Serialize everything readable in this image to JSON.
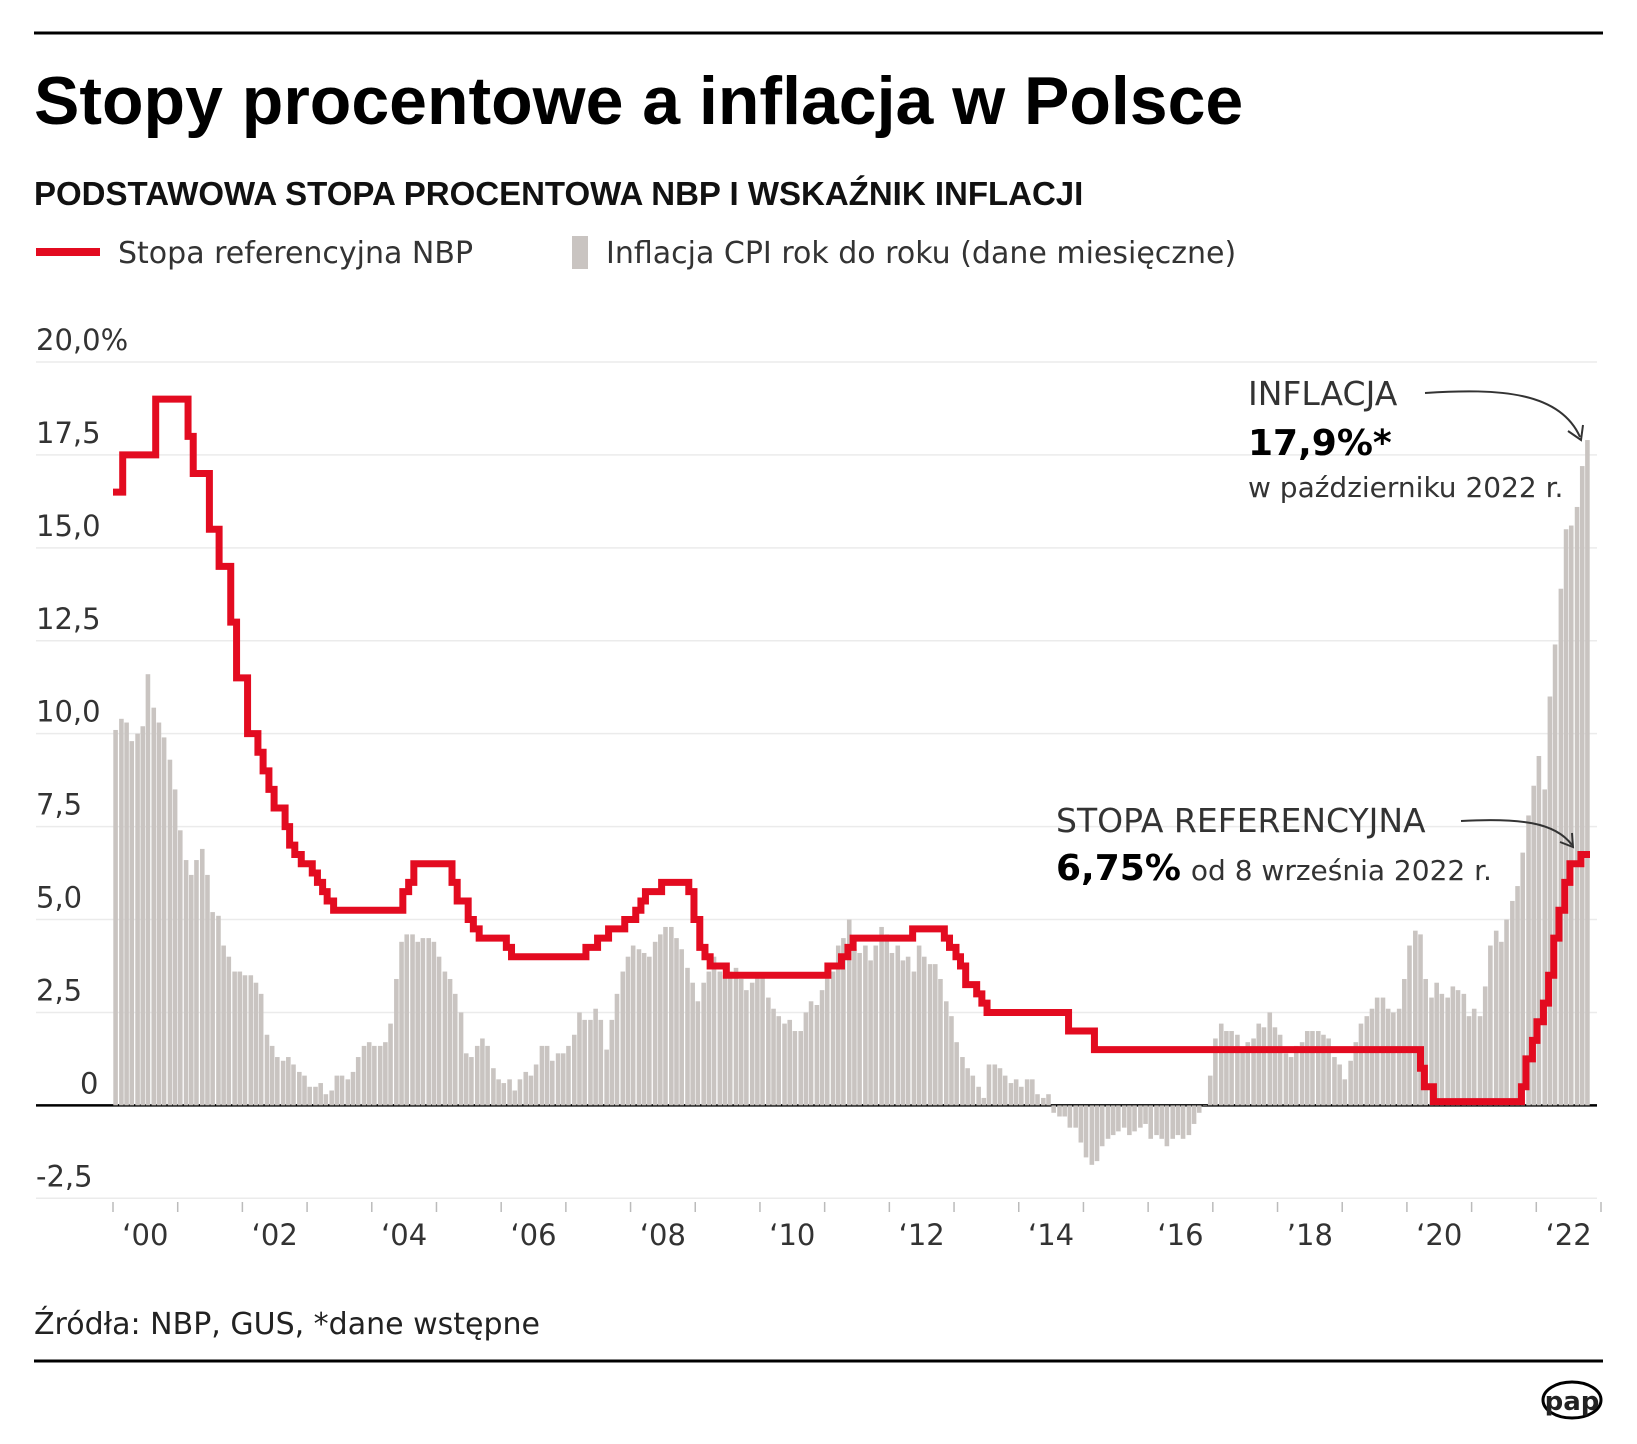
{
  "chart_data": {
    "type": "combo",
    "title": "Stopy procentowe a inflacja w Polsce",
    "subtitle": "PODSTAWOWA STOPA PROCENTOWA NBP I WSKAŹNIK INFLACJI",
    "source": "Źródła: NBP, GUS, *dane wstępne",
    "logo": "pap",
    "xlim": [
      2000,
      2023
    ],
    "ylim": [
      -2.6,
      20
    ],
    "yticks": [
      {
        "value": 20,
        "label": "20,0%"
      },
      {
        "value": 17.5,
        "label": "17,5"
      },
      {
        "value": 15,
        "label": "15,0"
      },
      {
        "value": 12.5,
        "label": "12,5"
      },
      {
        "value": 10,
        "label": "10,0"
      },
      {
        "value": 7.5,
        "label": "7,5"
      },
      {
        "value": 5,
        "label": "5,0"
      },
      {
        "value": 2.5,
        "label": "2,5"
      },
      0,
      {
        "value": -2.5,
        "label": "-2,5"
      }
    ],
    "xticks": [
      {
        "value": 2000.5,
        "label": "‘00"
      },
      {
        "value": 2002.5,
        "label": "‘02"
      },
      {
        "value": 2004.5,
        "label": "‘04"
      },
      {
        "value": 2006.5,
        "label": "‘06"
      },
      {
        "value": 2008.5,
        "label": "‘08"
      },
      {
        "value": 2010.5,
        "label": "‘10"
      },
      {
        "value": 2012.5,
        "label": "‘12"
      },
      {
        "value": 2014.5,
        "label": "‘14"
      },
      {
        "value": 2016.5,
        "label": "‘16"
      },
      {
        "value": 2018.5,
        "label": "’18"
      },
      {
        "value": 2020.5,
        "label": "‘20"
      },
      {
        "value": 2022.5,
        "label": "‘22"
      }
    ],
    "minor_xticks": [
      2000,
      2001,
      2002,
      2003,
      2004,
      2005,
      2006,
      2007,
      2008,
      2009,
      2010,
      2011,
      2012,
      2013,
      2014,
      2015,
      2016,
      2017,
      2018,
      2019,
      2020,
      2021,
      2022,
      2023
    ],
    "grid": true,
    "annotations": [
      {
        "series": 1,
        "lines": [
          "INFLACJA",
          "17,9%*",
          "w październiku 2022 r."
        ]
      },
      {
        "series": 0,
        "lines": [
          "STOPA REFERENCYJNA",
          "6,75%",
          "od 8 września 2022 r."
        ]
      }
    ],
    "series": [
      {
        "name": "Stopa referencyjna NBP",
        "type": "step",
        "color": "#e30b20",
        "x": [
          2000.0,
          2000.15,
          2000.66,
          2001.16,
          2001.24,
          2001.49,
          2001.64,
          2001.82,
          2001.91,
          2002.08,
          2002.24,
          2002.32,
          2002.41,
          2002.49,
          2002.66,
          2002.73,
          2002.81,
          2002.91,
          2003.08,
          2003.16,
          2003.24,
          2003.31,
          2003.41,
          2004.48,
          2004.57,
          2004.65,
          2005.24,
          2005.32,
          2005.49,
          2005.57,
          2005.66,
          2006.08,
          2006.16,
          2007.31,
          2007.49,
          2007.66,
          2007.91,
          2008.08,
          2008.16,
          2008.23,
          2008.48,
          2008.9,
          2008.98,
          2009.07,
          2009.15,
          2009.23,
          2009.48,
          2011.05,
          2011.26,
          2011.36,
          2011.44,
          2012.36,
          2012.85,
          2012.93,
          2013.03,
          2013.1,
          2013.18,
          2013.35,
          2013.43,
          2013.51,
          2014.77,
          2015.17,
          2020.21,
          2020.27,
          2020.41,
          2021.77,
          2021.84,
          2021.94,
          2022.01,
          2022.11,
          2022.19,
          2022.27,
          2022.35,
          2022.44,
          2022.52,
          2022.69,
          2022.83
        ],
        "values": [
          16.5,
          17.5,
          19.0,
          18.0,
          17.0,
          15.5,
          14.5,
          13.0,
          11.5,
          10.0,
          9.5,
          9.0,
          8.5,
          8.0,
          7.5,
          7.0,
          6.75,
          6.5,
          6.25,
          6.0,
          5.75,
          5.5,
          5.25,
          5.75,
          6.0,
          6.5,
          6.0,
          5.5,
          5.0,
          4.75,
          4.5,
          4.25,
          4.0,
          4.25,
          4.5,
          4.75,
          5.0,
          5.25,
          5.5,
          5.75,
          6.0,
          5.75,
          5.0,
          4.25,
          4.0,
          3.75,
          3.5,
          3.75,
          4.0,
          4.25,
          4.5,
          4.75,
          4.5,
          4.25,
          4.0,
          3.75,
          3.25,
          3.0,
          2.75,
          2.5,
          2.0,
          1.5,
          1.0,
          0.5,
          0.1,
          0.5,
          1.25,
          1.75,
          2.25,
          2.75,
          3.5,
          4.5,
          5.25,
          6.0,
          6.5,
          6.75,
          6.75
        ]
      },
      {
        "name": "Inflacja CPI rok do roku (dane miesięczne)",
        "type": "bar",
        "color": "#c9c4c1",
        "x": [
          2000.04,
          2000.13,
          2000.21,
          2000.29,
          2000.38,
          2000.46,
          2000.54,
          2000.63,
          2000.71,
          2000.79,
          2000.88,
          2000.96,
          2001.04,
          2001.13,
          2001.21,
          2001.29,
          2001.38,
          2001.46,
          2001.54,
          2001.63,
          2001.71,
          2001.79,
          2001.88,
          2001.96,
          2002.04,
          2002.13,
          2002.21,
          2002.29,
          2002.38,
          2002.46,
          2002.54,
          2002.63,
          2002.71,
          2002.79,
          2002.88,
          2002.96,
          2003.04,
          2003.13,
          2003.21,
          2003.29,
          2003.38,
          2003.46,
          2003.54,
          2003.63,
          2003.71,
          2003.79,
          2003.88,
          2003.96,
          2004.04,
          2004.13,
          2004.21,
          2004.29,
          2004.38,
          2004.46,
          2004.54,
          2004.63,
          2004.71,
          2004.79,
          2004.88,
          2004.96,
          2005.04,
          2005.13,
          2005.21,
          2005.29,
          2005.38,
          2005.46,
          2005.54,
          2005.63,
          2005.71,
          2005.79,
          2005.88,
          2005.96,
          2006.04,
          2006.13,
          2006.21,
          2006.29,
          2006.38,
          2006.46,
          2006.54,
          2006.63,
          2006.71,
          2006.79,
          2006.88,
          2006.96,
          2007.04,
          2007.13,
          2007.21,
          2007.29,
          2007.38,
          2007.46,
          2007.54,
          2007.63,
          2007.71,
          2007.79,
          2007.88,
          2007.96,
          2008.04,
          2008.13,
          2008.21,
          2008.29,
          2008.38,
          2008.46,
          2008.54,
          2008.63,
          2008.71,
          2008.79,
          2008.88,
          2008.96,
          2009.04,
          2009.13,
          2009.21,
          2009.29,
          2009.38,
          2009.46,
          2009.54,
          2009.63,
          2009.71,
          2009.79,
          2009.88,
          2009.96,
          2010.04,
          2010.13,
          2010.21,
          2010.29,
          2010.38,
          2010.46,
          2010.54,
          2010.63,
          2010.71,
          2010.79,
          2010.88,
          2010.96,
          2011.04,
          2011.13,
          2011.21,
          2011.29,
          2011.38,
          2011.46,
          2011.54,
          2011.63,
          2011.71,
          2011.79,
          2011.88,
          2011.96,
          2012.04,
          2012.13,
          2012.21,
          2012.29,
          2012.38,
          2012.46,
          2012.54,
          2012.63,
          2012.71,
          2012.79,
          2012.88,
          2012.96,
          2013.04,
          2013.13,
          2013.21,
          2013.29,
          2013.38,
          2013.46,
          2013.54,
          2013.63,
          2013.71,
          2013.79,
          2013.88,
          2013.96,
          2014.04,
          2014.13,
          2014.21,
          2014.29,
          2014.38,
          2014.46,
          2014.54,
          2014.63,
          2014.71,
          2014.79,
          2014.88,
          2014.96,
          2015.04,
          2015.13,
          2015.21,
          2015.29,
          2015.38,
          2015.46,
          2015.54,
          2015.63,
          2015.71,
          2015.79,
          2015.88,
          2015.96,
          2016.04,
          2016.13,
          2016.21,
          2016.29,
          2016.38,
          2016.46,
          2016.54,
          2016.63,
          2016.71,
          2016.79,
          2016.88,
          2016.96,
          2017.04,
          2017.13,
          2017.21,
          2017.29,
          2017.38,
          2017.46,
          2017.54,
          2017.63,
          2017.71,
          2017.79,
          2017.88,
          2017.96,
          2018.04,
          2018.13,
          2018.21,
          2018.29,
          2018.38,
          2018.46,
          2018.54,
          2018.63,
          2018.71,
          2018.79,
          2018.88,
          2018.96,
          2019.04,
          2019.13,
          2019.21,
          2019.29,
          2019.38,
          2019.46,
          2019.54,
          2019.63,
          2019.71,
          2019.79,
          2019.88,
          2019.96,
          2020.04,
          2020.13,
          2020.21,
          2020.29,
          2020.38,
          2020.46,
          2020.54,
          2020.63,
          2020.71,
          2020.79,
          2020.88,
          2020.96,
          2021.04,
          2021.13,
          2021.21,
          2021.29,
          2021.38,
          2021.46,
          2021.54,
          2021.63,
          2021.71,
          2021.79,
          2021.88,
          2021.96,
          2022.04,
          2022.13,
          2022.21,
          2022.29,
          2022.38,
          2022.46,
          2022.54,
          2022.63,
          2022.71,
          2022.79
        ],
        "values": [
          10.1,
          10.4,
          10.3,
          9.8,
          10.0,
          10.2,
          11.6,
          10.7,
          10.3,
          9.9,
          9.3,
          8.5,
          7.4,
          6.6,
          6.2,
          6.6,
          6.9,
          6.2,
          5.2,
          5.1,
          4.3,
          4.0,
          3.6,
          3.6,
          3.5,
          3.5,
          3.3,
          3.0,
          1.9,
          1.6,
          1.3,
          1.2,
          1.3,
          1.1,
          0.9,
          0.8,
          0.5,
          0.5,
          0.6,
          0.3,
          0.4,
          0.8,
          0.8,
          0.7,
          0.9,
          1.3,
          1.6,
          1.7,
          1.6,
          1.6,
          1.7,
          2.2,
          3.4,
          4.4,
          4.6,
          4.6,
          4.4,
          4.5,
          4.5,
          4.4,
          4.0,
          3.6,
          3.4,
          3.0,
          2.5,
          1.4,
          1.3,
          1.6,
          1.8,
          1.6,
          1.0,
          0.7,
          0.6,
          0.7,
          0.4,
          0.7,
          0.9,
          0.8,
          1.1,
          1.6,
          1.6,
          1.2,
          1.4,
          1.4,
          1.6,
          1.9,
          2.5,
          2.3,
          2.3,
          2.6,
          2.3,
          1.5,
          2.3,
          3.0,
          3.6,
          4.0,
          4.3,
          4.2,
          4.1,
          4.0,
          4.4,
          4.6,
          4.8,
          4.8,
          4.5,
          4.2,
          3.7,
          3.3,
          2.8,
          3.3,
          3.6,
          4.0,
          3.6,
          3.5,
          3.6,
          3.7,
          3.4,
          3.1,
          3.3,
          3.5,
          3.5,
          2.9,
          2.6,
          2.4,
          2.2,
          2.3,
          2.0,
          2.0,
          2.5,
          2.8,
          2.7,
          3.1,
          3.6,
          3.6,
          4.3,
          4.5,
          5.0,
          4.2,
          4.1,
          4.3,
          3.9,
          4.3,
          4.8,
          4.6,
          4.1,
          4.3,
          3.9,
          4.0,
          3.6,
          4.3,
          4.0,
          3.8,
          3.8,
          3.4,
          2.8,
          2.4,
          1.7,
          1.3,
          1.0,
          0.8,
          0.5,
          0.2,
          1.1,
          1.1,
          1.0,
          0.8,
          0.6,
          0.7,
          0.5,
          0.7,
          0.7,
          0.3,
          0.2,
          0.3,
          -0.2,
          -0.3,
          -0.3,
          -0.6,
          -0.6,
          -1.0,
          -1.4,
          -1.6,
          -1.5,
          -1.1,
          -0.9,
          -0.8,
          -0.7,
          -0.6,
          -0.8,
          -0.7,
          -0.6,
          -0.5,
          -0.9,
          -0.8,
          -0.9,
          -1.1,
          -0.9,
          -0.8,
          -0.9,
          -0.8,
          -0.5,
          -0.2,
          0.0,
          0.8,
          1.8,
          2.2,
          2.0,
          2.0,
          1.9,
          1.5,
          1.7,
          1.8,
          2.2,
          2.1,
          2.5,
          2.1,
          1.9,
          1.4,
          1.3,
          1.6,
          1.7,
          2.0,
          2.0,
          2.0,
          1.9,
          1.8,
          1.3,
          1.1,
          0.7,
          1.2,
          1.7,
          2.2,
          2.4,
          2.6,
          2.9,
          2.9,
          2.6,
          2.5,
          2.6,
          3.4,
          4.3,
          4.7,
          4.6,
          3.4,
          2.9,
          3.3,
          3.0,
          2.9,
          3.2,
          3.1,
          3.0,
          2.4,
          2.6,
          2.4,
          3.2,
          4.3,
          4.7,
          4.4,
          5.0,
          5.5,
          5.9,
          6.8,
          7.8,
          8.6,
          9.4,
          8.5,
          11.0,
          12.4,
          13.9,
          15.5,
          15.6,
          16.1,
          17.2,
          17.9
        ]
      }
    ]
  }
}
